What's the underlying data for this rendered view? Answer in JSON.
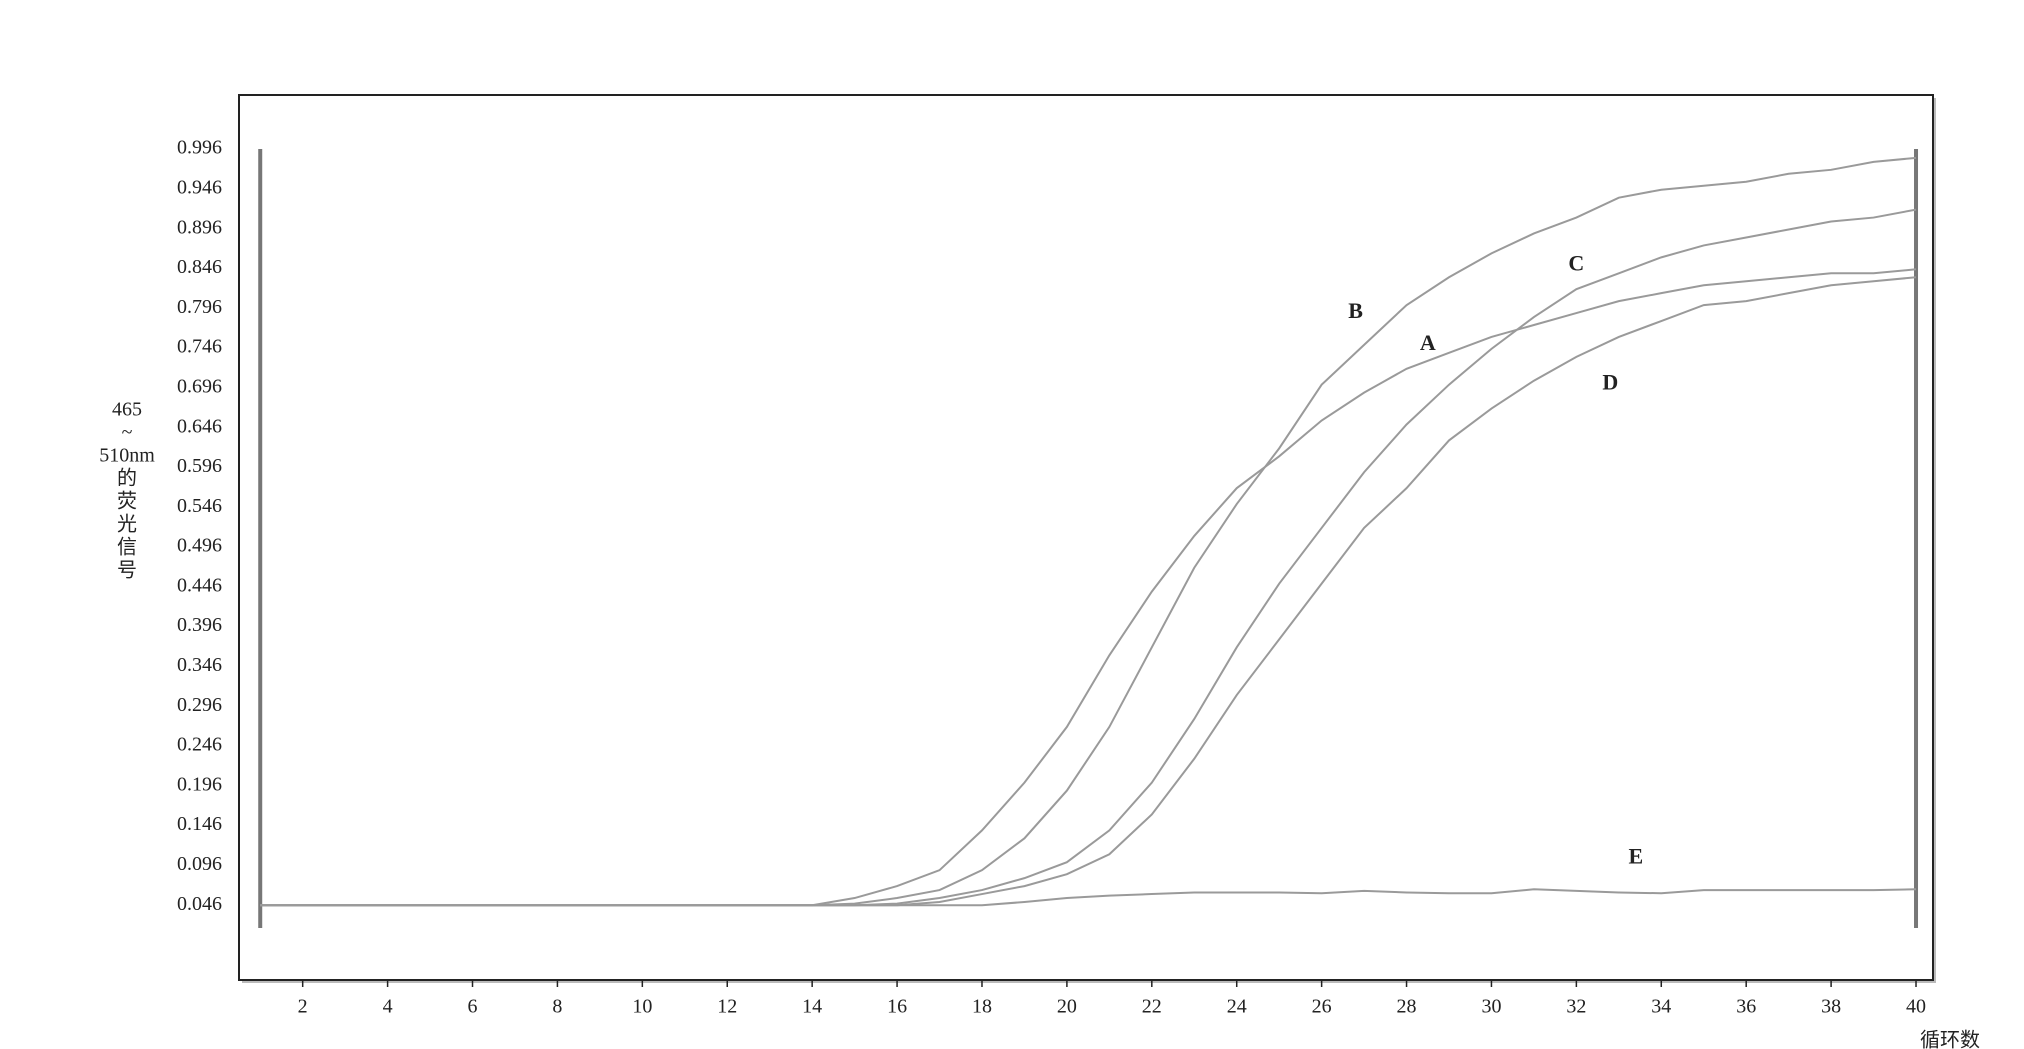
{
  "chart_data": {
    "type": "line",
    "y_label_lines": [
      "465",
      "~",
      "510nm",
      "的",
      "荧",
      "光",
      "信",
      "号"
    ],
    "x_label": "循环数",
    "x": [
      1,
      2,
      3,
      4,
      5,
      6,
      7,
      8,
      9,
      10,
      11,
      12,
      13,
      14,
      15,
      16,
      17,
      18,
      19,
      20,
      21,
      22,
      23,
      24,
      25,
      26,
      27,
      28,
      29,
      30,
      31,
      32,
      33,
      34,
      35,
      36,
      37,
      38,
      39,
      40
    ],
    "series": [
      {
        "name": "A",
        "color": "#9a9a9a",
        "values": [
          0.046,
          0.046,
          0.046,
          0.046,
          0.046,
          0.046,
          0.046,
          0.046,
          0.046,
          0.046,
          0.046,
          0.046,
          0.046,
          0.046,
          0.055,
          0.07,
          0.09,
          0.14,
          0.2,
          0.27,
          0.36,
          0.44,
          0.51,
          0.57,
          0.61,
          0.655,
          0.69,
          0.72,
          0.74,
          0.76,
          0.775,
          0.79,
          0.805,
          0.815,
          0.825,
          0.83,
          0.835,
          0.84,
          0.84,
          0.845
        ]
      },
      {
        "name": "B",
        "color": "#9a9a9a",
        "values": [
          0.046,
          0.046,
          0.046,
          0.046,
          0.046,
          0.046,
          0.046,
          0.046,
          0.046,
          0.046,
          0.046,
          0.046,
          0.046,
          0.046,
          0.048,
          0.055,
          0.065,
          0.09,
          0.13,
          0.19,
          0.27,
          0.37,
          0.47,
          0.55,
          0.62,
          0.7,
          0.75,
          0.8,
          0.835,
          0.865,
          0.89,
          0.91,
          0.935,
          0.945,
          0.95,
          0.955,
          0.965,
          0.97,
          0.98,
          0.985
        ]
      },
      {
        "name": "C",
        "color": "#9a9a9a",
        "values": [
          0.046,
          0.046,
          0.046,
          0.046,
          0.046,
          0.046,
          0.046,
          0.046,
          0.046,
          0.046,
          0.046,
          0.046,
          0.046,
          0.046,
          0.046,
          0.048,
          0.055,
          0.065,
          0.08,
          0.1,
          0.14,
          0.2,
          0.28,
          0.37,
          0.45,
          0.52,
          0.59,
          0.65,
          0.7,
          0.745,
          0.785,
          0.82,
          0.84,
          0.86,
          0.875,
          0.885,
          0.895,
          0.905,
          0.91,
          0.92
        ]
      },
      {
        "name": "D",
        "color": "#9a9a9a",
        "values": [
          0.046,
          0.046,
          0.046,
          0.046,
          0.046,
          0.046,
          0.046,
          0.046,
          0.046,
          0.046,
          0.046,
          0.046,
          0.046,
          0.046,
          0.046,
          0.046,
          0.05,
          0.06,
          0.07,
          0.085,
          0.11,
          0.16,
          0.23,
          0.31,
          0.38,
          0.45,
          0.52,
          0.57,
          0.63,
          0.67,
          0.705,
          0.735,
          0.76,
          0.78,
          0.8,
          0.805,
          0.815,
          0.825,
          0.83,
          0.835
        ]
      },
      {
        "name": "E",
        "color": "#9a9a9a",
        "values": [
          0.046,
          0.046,
          0.046,
          0.046,
          0.046,
          0.046,
          0.046,
          0.046,
          0.046,
          0.046,
          0.046,
          0.046,
          0.046,
          0.046,
          0.046,
          0.046,
          0.046,
          0.046,
          0.05,
          0.055,
          0.058,
          0.06,
          0.062,
          0.062,
          0.062,
          0.061,
          0.064,
          0.062,
          0.061,
          0.061,
          0.066,
          0.064,
          0.062,
          0.061,
          0.065,
          0.065,
          0.065,
          0.065,
          0.065,
          0.066
        ]
      }
    ],
    "xlim": [
      0.5,
      40.4
    ],
    "ylim": [
      -0.048,
      1.064
    ],
    "xticks": [
      2,
      4,
      6,
      8,
      10,
      12,
      14,
      16,
      18,
      20,
      22,
      24,
      26,
      28,
      30,
      32,
      34,
      36,
      38,
      40
    ],
    "yticks": [
      0.046,
      0.096,
      0.146,
      0.196,
      0.246,
      0.296,
      0.346,
      0.396,
      0.446,
      0.496,
      0.546,
      0.596,
      0.646,
      0.696,
      0.746,
      0.796,
      0.846,
      0.896,
      0.946,
      0.996
    ]
  }
}
